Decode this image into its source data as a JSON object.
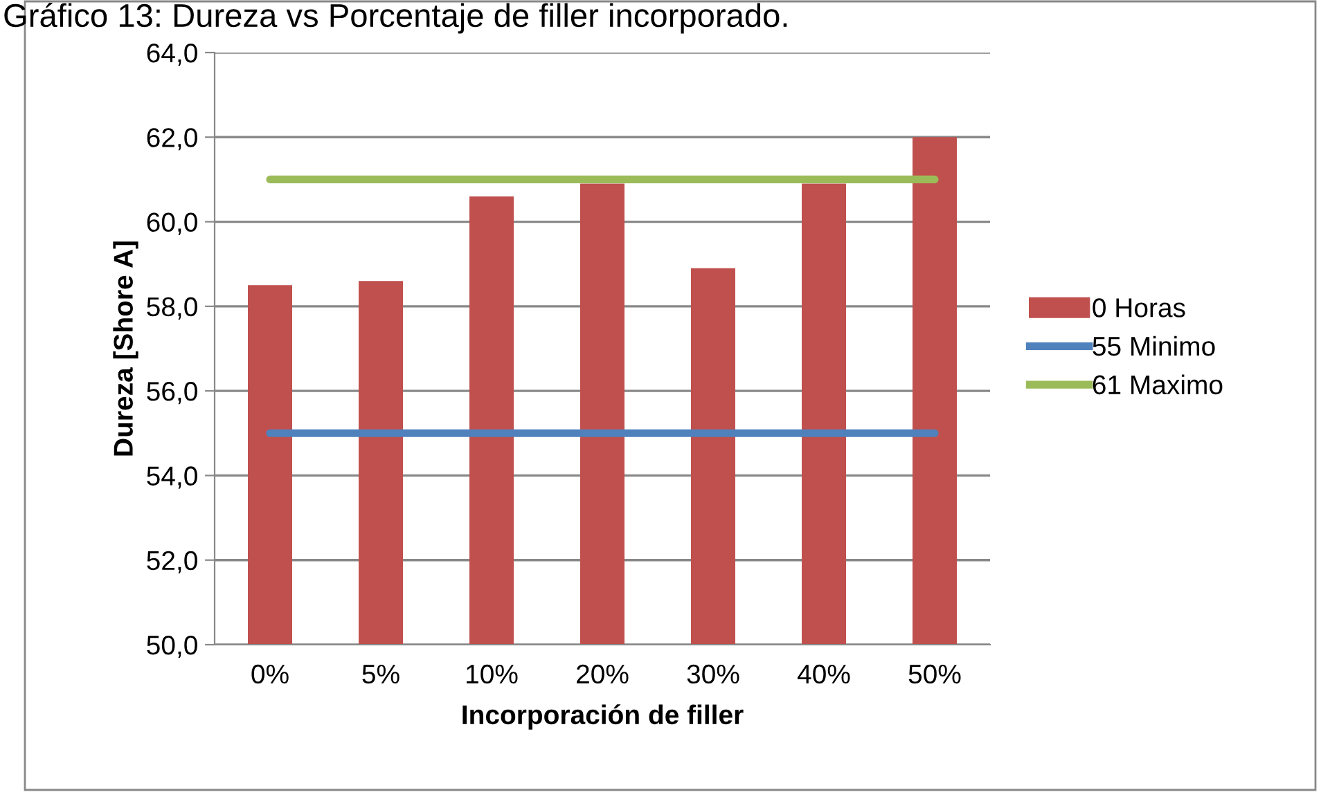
{
  "chart_data": {
    "type": "bar",
    "title": "Gráfico 13: Dureza vs Porcentaje de filler incorporado.",
    "xlabel": "Incorporación de filler",
    "ylabel": "Dureza [Shore A]",
    "categories": [
      "0%",
      "5%",
      "10%",
      "20%",
      "30%",
      "40%",
      "50%"
    ],
    "series": [
      {
        "name": "0 Horas",
        "color": "#c0504d",
        "values": [
          58.5,
          58.6,
          60.6,
          60.9,
          58.9,
          60.9,
          62.0
        ]
      },
      {
        "name": "55 Minimo",
        "type": "line",
        "color": "#4f81bd",
        "values": [
          55,
          55,
          55,
          55,
          55,
          55,
          55
        ]
      },
      {
        "name": "61 Maximo",
        "type": "line",
        "color": "#9bbb59",
        "values": [
          61,
          61,
          61,
          61,
          61,
          61,
          61
        ]
      }
    ],
    "ylim": [
      50,
      64
    ],
    "yticks": [
      {
        "value": 50,
        "label": "50,0"
      },
      {
        "value": 52,
        "label": "52,0"
      },
      {
        "value": 54,
        "label": "54,0"
      },
      {
        "value": 56,
        "label": "56,0"
      },
      {
        "value": 58,
        "label": "58,0"
      },
      {
        "value": 60,
        "label": "60,0"
      },
      {
        "value": 62,
        "label": "62,0"
      },
      {
        "value": 64,
        "label": "64,0"
      }
    ],
    "grid": "y",
    "legend": "right",
    "marker": "none"
  }
}
